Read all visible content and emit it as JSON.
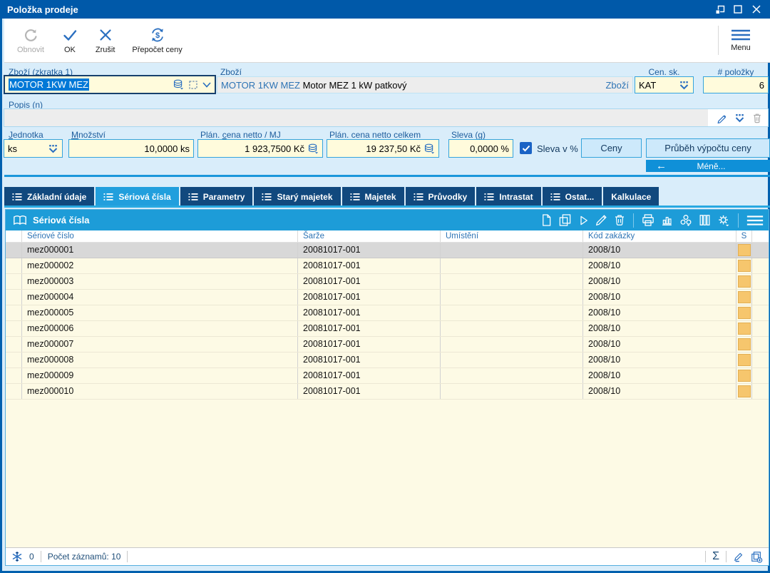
{
  "window": {
    "title": "Položka prodeje"
  },
  "toolbar": {
    "obnovit": "Obnovit",
    "ok": "OK",
    "zrusit": "Zrušit",
    "prepocet": "Přepočet ceny",
    "menu": "Menu"
  },
  "form": {
    "zbozi_zkratka": {
      "label_key": "Z",
      "label_post": "boží (zkratka 1)",
      "value": "MOTOR 1KW MEZ"
    },
    "zbozi": {
      "label": "Zboží",
      "code": "MOTOR 1KW MEZ",
      "name": " Motor MEZ 1 kW patkový",
      "suffix": "Zboží"
    },
    "cen_sk": {
      "label": "Cen. sk.",
      "value": "KAT"
    },
    "pocet": {
      "label": "# položky",
      "value": "6"
    },
    "popis": {
      "label_pre": "Popis (",
      "label_key": "n",
      "label_post": ")",
      "value": ""
    },
    "jednotka": {
      "label_key": "J",
      "label_post": "ednotka",
      "value": "ks"
    },
    "mnozstvi": {
      "label_key": "M",
      "label_post": "nožství",
      "value": "10,0000 ks"
    },
    "plan_mj": {
      "label_pre": "Plán. ",
      "label_key": "c",
      "label_post": "ena netto / MJ",
      "value": "1 923,7500 Kč"
    },
    "plan_celkem": {
      "label": "Plán. cena netto celkem",
      "value": "19 237,50 Kč"
    },
    "sleva": {
      "label_pre": "Sleva (",
      "label_key": "g",
      "label_post": ")",
      "value": "0,0000 %"
    },
    "sleva_pct": {
      "label": "Sleva v %",
      "checked": true
    },
    "buttons": {
      "ceny": "Ceny",
      "prubeh": "Průběh výpočtu ceny",
      "mene": "Méně..."
    }
  },
  "tabs": {
    "active_index": 1,
    "items": [
      {
        "label": "Základní údaje",
        "icon": true
      },
      {
        "label": "Sériová čísla",
        "icon": true
      },
      {
        "label": "Parametry",
        "icon": true
      },
      {
        "label": "Starý majetek",
        "icon": true
      },
      {
        "label": "Majetek",
        "icon": true
      },
      {
        "label": "Průvodky",
        "icon": true
      },
      {
        "label": "Intrastat",
        "icon": true
      },
      {
        "label": "Ostat...",
        "icon": true
      },
      {
        "label": "Kalkulace",
        "icon": false
      }
    ]
  },
  "grid": {
    "title": "Sériová čísla",
    "columns": [
      "Sériové číslo",
      "Šarže",
      "Umístění",
      "Kód zakázky",
      "S"
    ],
    "selected_index": 0,
    "status_color": "#f6c66d",
    "rows": [
      [
        "mez000001",
        "20081017-001",
        "",
        "2008/10"
      ],
      [
        "mez000002",
        "20081017-001",
        "",
        "2008/10"
      ],
      [
        "mez000003",
        "20081017-001",
        "",
        "2008/10"
      ],
      [
        "mez000004",
        "20081017-001",
        "",
        "2008/10"
      ],
      [
        "mez000005",
        "20081017-001",
        "",
        "2008/10"
      ],
      [
        "mez000006",
        "20081017-001",
        "",
        "2008/10"
      ],
      [
        "mez000007",
        "20081017-001",
        "",
        "2008/10"
      ],
      [
        "mez000008",
        "20081017-001",
        "",
        "2008/10"
      ],
      [
        "mez000009",
        "20081017-001",
        "",
        "2008/10"
      ],
      [
        "mez000010",
        "20081017-001",
        "",
        "2008/10"
      ]
    ]
  },
  "statusbar": {
    "count": "0",
    "records": "Počet záznamů: 10",
    "sum_icon": "Σ"
  },
  "colors": {
    "titlebar": "#0059a9",
    "accent": "#2a6fc0",
    "field_bg": "#fffbdc",
    "tab_bg": "#11497e",
    "tab_active": "#219fdd",
    "selection": "#0078d7",
    "row_bg": "#fdfae5",
    "row_selected": "#d8d8d8",
    "status_square": "#f6c66d"
  }
}
